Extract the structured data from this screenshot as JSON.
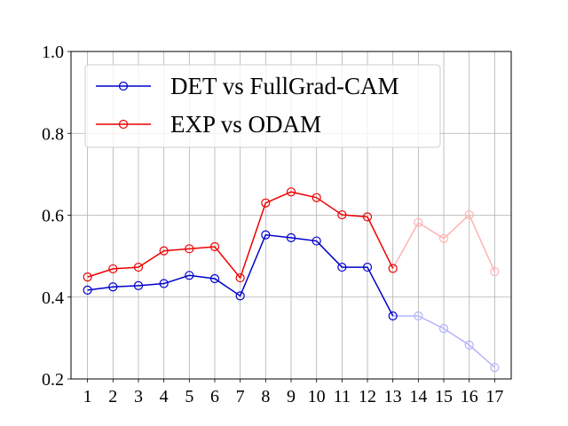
{
  "chart_data": {
    "type": "line",
    "title": "",
    "xlabel": "",
    "ylabel": "",
    "x": [
      1,
      2,
      3,
      4,
      5,
      6,
      7,
      8,
      9,
      10,
      11,
      12,
      13,
      14,
      15,
      16,
      17
    ],
    "xlim": [
      0.35,
      17.65
    ],
    "ylim": [
      0.2,
      1.0
    ],
    "yticks": [
      0.2,
      0.4,
      0.6,
      0.8,
      1.0
    ],
    "ytick_labels": [
      "0.2",
      "0.4",
      "0.6",
      "0.8",
      "1.0"
    ],
    "xtick_labels": [
      "1",
      "2",
      "3",
      "4",
      "5",
      "6",
      "7",
      "8",
      "9",
      "10",
      "11",
      "12",
      "13",
      "14",
      "15",
      "16",
      "17"
    ],
    "grid": true,
    "legend_position": "top-left",
    "faded_from_x": 13,
    "series": [
      {
        "name": "DET vs FullGrad-CAM",
        "color": "#0000cc",
        "faded_color": "#b3b3ff",
        "values": [
          0.417,
          0.425,
          0.428,
          0.433,
          0.453,
          0.445,
          0.403,
          0.552,
          0.545,
          0.537,
          0.473,
          0.473,
          0.354,
          0.354,
          0.323,
          0.283,
          0.228
        ]
      },
      {
        "name": "EXP vs ODAM",
        "color": "#ee0000",
        "faded_color": "#ffb3b3",
        "values": [
          0.449,
          0.469,
          0.473,
          0.513,
          0.518,
          0.523,
          0.447,
          0.63,
          0.657,
          0.643,
          0.601,
          0.596,
          0.47,
          0.582,
          0.543,
          0.601,
          0.462
        ]
      }
    ]
  }
}
